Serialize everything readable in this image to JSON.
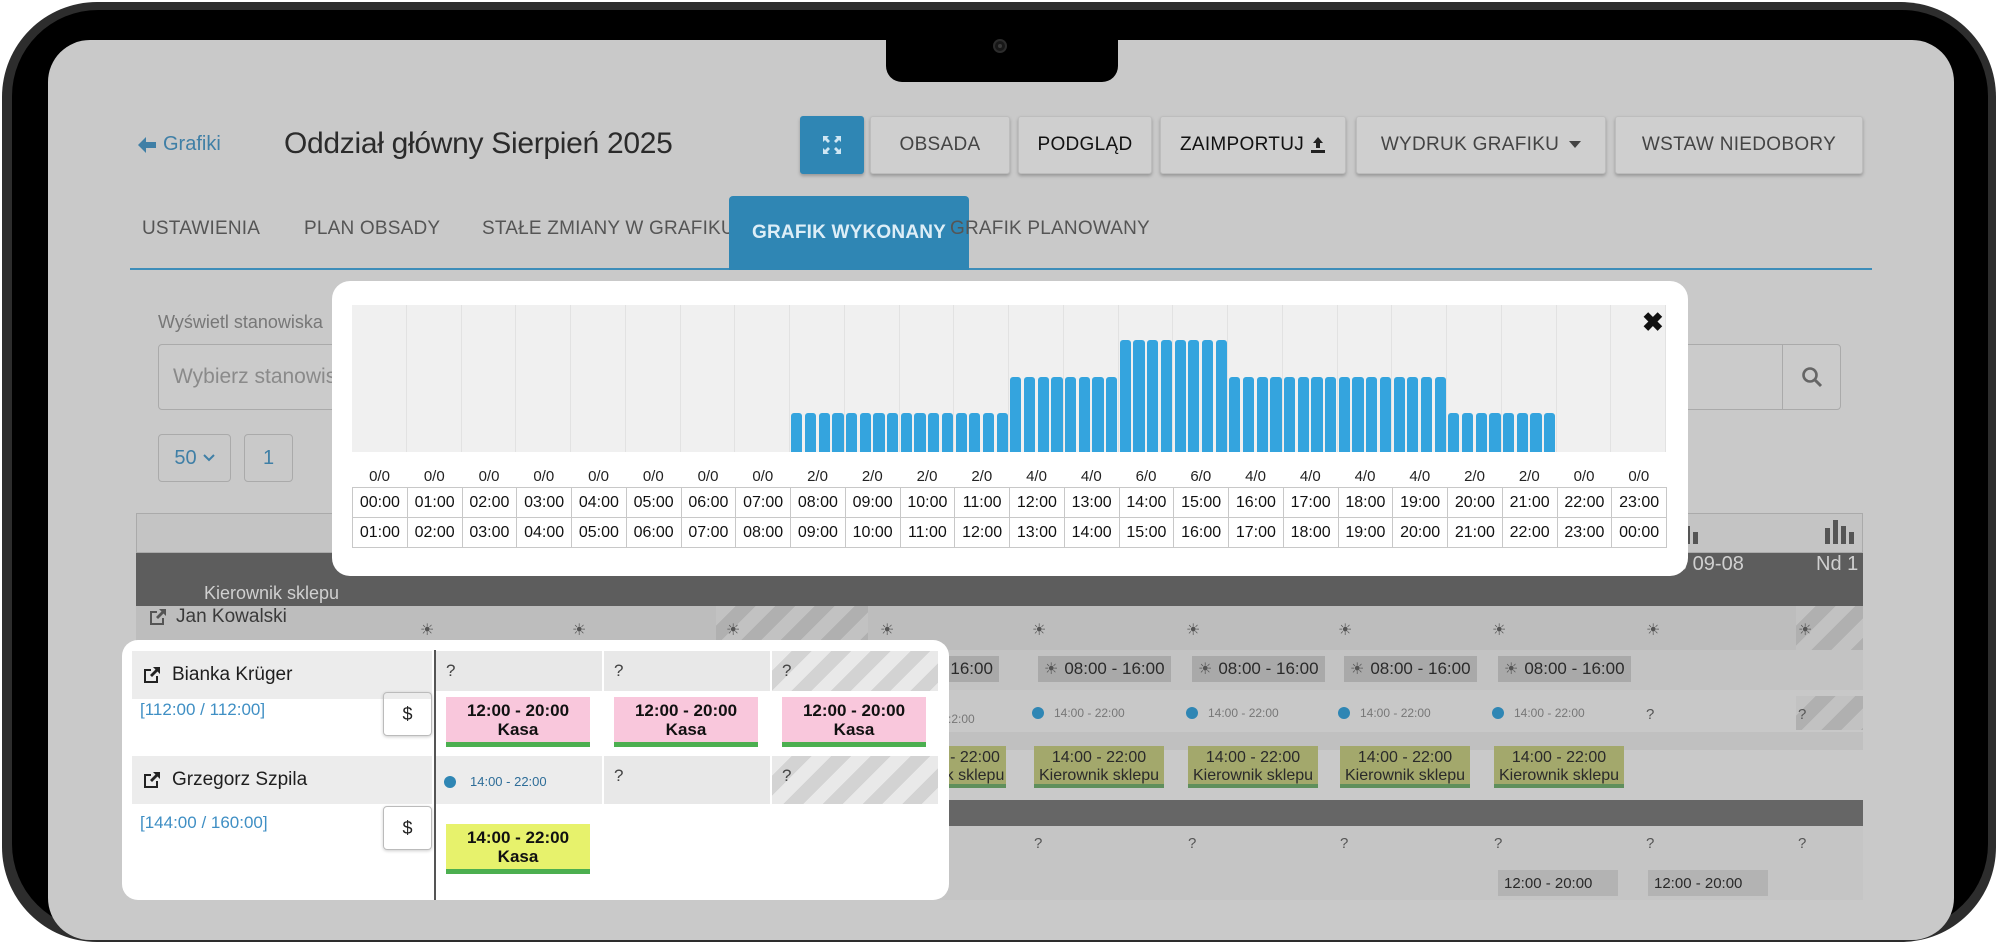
{
  "header": {
    "back_label": "Grafiki",
    "title": "Oddział główny Sierpień 2025"
  },
  "toolbar": {
    "obsada": "OBSADA",
    "podglad": "PODGLĄD",
    "zaimportuj": "ZAIMPORTUJ",
    "wydruk": "WYDRUK GRAFIKU",
    "niedobory": "WSTAW NIEDOBORY"
  },
  "tabs": [
    "USTAWIENIA",
    "PLAN OBSADY",
    "STAŁE ZMIANY W GRAFIKU",
    "GRAFIK WYKONANY",
    "GRAFIK PLANOWANY"
  ],
  "filter": {
    "label": "Wyświetl stanowiska",
    "placeholder": "Wybierz stanowis"
  },
  "pagination": {
    "per_page": "50",
    "page": "1"
  },
  "grid": {
    "role": "Kierownik sklepu",
    "date_sat": "b 09-08",
    "date_sun": "Nd 1",
    "employee": "Jan Kowalski",
    "shift_time": "08:00 - 16:00",
    "shift_time_partial": "- 16:00",
    "dot_time": "14:00 - 22:00",
    "dot_time_partial": ":2:00",
    "green_time": "14:00 - 22:00",
    "green_role": "Kierownik sklepu",
    "green_partial_time": "- 22:00",
    "green_partial_role": "k sklepu",
    "qmark": "?",
    "bottom_time": "12:00 - 20:00"
  },
  "popup": {
    "close": "✖",
    "hours_from": [
      "00:00",
      "01:00",
      "02:00",
      "03:00",
      "04:00",
      "05:00",
      "06:00",
      "07:00",
      "08:00",
      "09:00",
      "10:00",
      "11:00",
      "12:00",
      "13:00",
      "14:00",
      "15:00",
      "16:00",
      "17:00",
      "18:00",
      "19:00",
      "20:00",
      "21:00",
      "22:00",
      "23:00"
    ],
    "hours_to": [
      "01:00",
      "02:00",
      "03:00",
      "04:00",
      "05:00",
      "06:00",
      "07:00",
      "08:00",
      "09:00",
      "10:00",
      "11:00",
      "12:00",
      "13:00",
      "14:00",
      "15:00",
      "16:00",
      "17:00",
      "18:00",
      "19:00",
      "20:00",
      "21:00",
      "22:00",
      "23:00",
      "00:00"
    ],
    "counts": [
      "0/0",
      "0/0",
      "0/0",
      "0/0",
      "0/0",
      "0/0",
      "0/0",
      "0/0",
      "2/0",
      "2/0",
      "2/0",
      "2/0",
      "4/0",
      "4/0",
      "6/0",
      "6/0",
      "4/0",
      "4/0",
      "4/0",
      "4/0",
      "2/0",
      "2/0",
      "0/0",
      "0/0"
    ]
  },
  "chart_data": {
    "type": "bar",
    "categories": [
      "00:00",
      "01:00",
      "02:00",
      "03:00",
      "04:00",
      "05:00",
      "06:00",
      "07:00",
      "08:00",
      "09:00",
      "10:00",
      "11:00",
      "12:00",
      "13:00",
      "14:00",
      "15:00",
      "16:00",
      "17:00",
      "18:00",
      "19:00",
      "20:00",
      "21:00",
      "22:00",
      "23:00"
    ],
    "values": [
      0,
      0,
      0,
      0,
      0,
      0,
      0,
      0,
      2,
      2,
      2,
      2,
      4,
      4,
      6,
      6,
      4,
      4,
      4,
      4,
      2,
      2,
      0,
      0
    ],
    "ylim": [
      0,
      8
    ],
    "bars_per_hour": 4,
    "bar_color": "#34a4de"
  },
  "card": {
    "employees": [
      {
        "name": "Bianka Krüger",
        "hours": "[112:00 / 112:00]",
        "dollar": "$",
        "cells": [
          "?",
          "?",
          "?"
        ],
        "shifts": [
          {
            "time": "12:00 - 20:00",
            "role": "Kasa"
          },
          {
            "time": "12:00 - 20:00",
            "role": "Kasa"
          },
          {
            "time": "12:00 - 20:00",
            "role": "Kasa"
          }
        ]
      },
      {
        "name": "Grzegorz Szpila",
        "hours": "[144:00 / 160:00]",
        "dollar": "$",
        "dot_time": "14:00 - 22:00",
        "cells": [
          "?",
          "?"
        ],
        "shifts": [
          {
            "time": "14:00 - 22:00",
            "role": "Kasa"
          }
        ]
      }
    ]
  },
  "colors": {
    "accent": "#2f86b4",
    "link": "#3f7fa6",
    "shift_pink": "#f9c7dc",
    "shift_yellow": "#e7f26c",
    "shift_border": "#4caf50"
  }
}
